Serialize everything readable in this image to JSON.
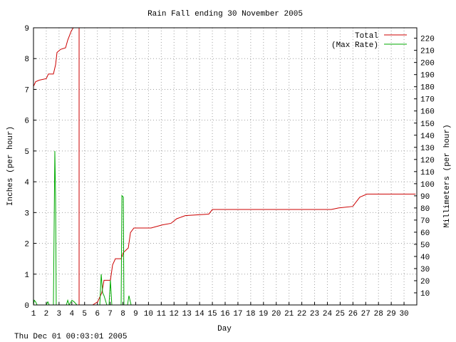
{
  "chart_data": {
    "type": "line",
    "title": "Rain Fall ending 30 November 2005",
    "xlabel": "Day",
    "ylabel": "Inches (per hour)",
    "y2label": "Millimeters (per hour)",
    "timestamp": "Thu Dec 01 00:03:01 2005",
    "xlim": [
      1,
      31
    ],
    "xticks": [
      1,
      2,
      3,
      4,
      5,
      6,
      7,
      8,
      9,
      10,
      11,
      12,
      13,
      14,
      15,
      16,
      17,
      18,
      19,
      20,
      21,
      22,
      23,
      24,
      25,
      26,
      27,
      28,
      29,
      30
    ],
    "ylim": [
      0,
      9
    ],
    "yticks": [
      0,
      1,
      2,
      3,
      4,
      5,
      6,
      7,
      8,
      9
    ],
    "y2lim": [
      0,
      228.6
    ],
    "y2ticks": [
      10,
      20,
      30,
      40,
      50,
      60,
      70,
      80,
      90,
      100,
      110,
      120,
      130,
      140,
      150,
      160,
      170,
      180,
      190,
      200,
      210,
      220
    ],
    "grid": true,
    "legend": "top-right",
    "series": [
      {
        "name": "Total",
        "color": "#cc0000",
        "x": [
          1.0,
          1.17,
          1.45,
          2.0,
          2.17,
          2.56,
          2.73,
          2.84,
          3.12,
          3.51,
          3.68,
          3.96,
          4.12,
          4.57,
          4.57,
          5.63,
          6.02,
          6.35,
          6.52,
          7.02,
          7.19,
          7.41,
          7.86,
          8.03,
          8.42,
          8.59,
          8.86,
          10.2,
          11.09,
          11.76,
          12.21,
          12.88,
          14.72,
          15.0,
          24.31,
          24.87,
          25.99,
          26.26,
          26.54,
          27.1,
          30.9
        ],
        "values": [
          7.1,
          7.25,
          7.3,
          7.35,
          7.5,
          7.5,
          7.8,
          8.2,
          8.3,
          8.35,
          8.6,
          8.9,
          9.0,
          9.0,
          0,
          0,
          0.1,
          0.4,
          0.8,
          0.8,
          1.3,
          1.5,
          1.5,
          1.7,
          1.85,
          2.35,
          2.5,
          2.5,
          2.6,
          2.65,
          2.8,
          2.9,
          2.95,
          3.1,
          3.1,
          3.15,
          3.2,
          3.35,
          3.5,
          3.6,
          3.6
        ]
      },
      {
        "name": "(Max Rate)",
        "color": "#00aa00",
        "x": [
          1.0,
          1.06,
          1.17,
          1.28,
          2.0,
          2.12,
          2.23,
          2.56,
          2.67,
          2.73,
          2.78,
          3.57,
          3.68,
          3.79,
          4.01,
          4.18,
          4.4,
          6.19,
          6.3,
          6.41,
          6.52,
          6.74,
          6.91,
          7.02,
          7.13,
          7.86,
          7.92,
          8.03,
          8.08,
          8.36,
          8.47,
          8.64,
          30.9
        ],
        "values": [
          0,
          0.15,
          0.1,
          0,
          0,
          0.1,
          0,
          0,
          5.0,
          3.5,
          0,
          0,
          0.15,
          0,
          0.15,
          0.1,
          0,
          0,
          1.0,
          0.4,
          0.3,
          0,
          0,
          0.8,
          0,
          0,
          3.55,
          3.5,
          0,
          0,
          0.3,
          0,
          0
        ]
      }
    ]
  }
}
